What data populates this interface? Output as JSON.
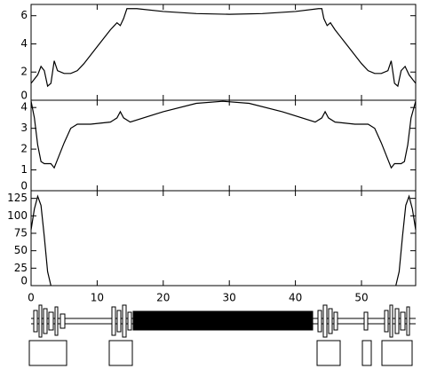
{
  "chart_data": [
    {
      "type": "line",
      "xlim": [
        0,
        58.2
      ],
      "ylim": [
        0,
        6.8
      ],
      "yticks": [
        0,
        2,
        4,
        6
      ],
      "x": [
        0,
        1,
        1.5,
        2,
        2.5,
        3,
        3.5,
        4,
        5,
        6,
        7,
        8,
        10,
        12,
        13,
        13.5,
        14,
        14.5,
        16,
        20,
        25,
        30,
        35,
        40,
        43.5,
        44,
        44.3,
        44.8,
        45.3,
        46,
        48,
        50,
        51,
        52,
        53,
        54,
        54.5,
        55,
        55.5,
        56,
        56.6,
        57.2,
        58.2
      ],
      "values": [
        1.2,
        1.8,
        2.4,
        2.1,
        1.0,
        1.2,
        2.8,
        2.1,
        1.9,
        1.9,
        2.1,
        2.6,
        3.8,
        5.0,
        5.5,
        5.3,
        5.8,
        6.5,
        6.5,
        6.3,
        6.15,
        6.1,
        6.15,
        6.3,
        6.5,
        6.5,
        5.8,
        5.3,
        5.5,
        5.0,
        3.8,
        2.6,
        2.1,
        1.9,
        1.9,
        2.1,
        2.8,
        1.2,
        1.0,
        2.1,
        2.4,
        1.8,
        1.2
      ]
    },
    {
      "type": "line",
      "xlim": [
        0,
        58.2
      ],
      "ylim": [
        0,
        4.35
      ],
      "yticks": [
        0,
        1,
        2,
        3,
        4
      ],
      "x": [
        0,
        0.5,
        1,
        1.5,
        2,
        3,
        3.5,
        4,
        5,
        6,
        7,
        9,
        12,
        13,
        13.5,
        14,
        15,
        20,
        25,
        29,
        33,
        38,
        43,
        44,
        44.5,
        45,
        46,
        49,
        51,
        52,
        53,
        54,
        54.5,
        55,
        56,
        56.5,
        57,
        57.5,
        58.2
      ],
      "values": [
        4.3,
        3.5,
        2.2,
        1.4,
        1.3,
        1.3,
        1.1,
        1.5,
        2.3,
        3.0,
        3.2,
        3.2,
        3.3,
        3.5,
        3.8,
        3.5,
        3.3,
        3.8,
        4.2,
        4.3,
        4.2,
        3.8,
        3.3,
        3.5,
        3.8,
        3.5,
        3.3,
        3.2,
        3.2,
        3.0,
        2.3,
        1.5,
        1.1,
        1.3,
        1.3,
        1.4,
        2.2,
        3.5,
        4.3
      ]
    },
    {
      "type": "line",
      "xlim": [
        0,
        58.2
      ],
      "ylim": [
        0,
        136
      ],
      "yticks": [
        0,
        25,
        50,
        75,
        100,
        125
      ],
      "xticks": [
        0,
        10,
        20,
        30,
        40,
        50
      ],
      "x": [
        0,
        0.5,
        1,
        1.5,
        2,
        2.5,
        3,
        30,
        55.2,
        55.7,
        56.2,
        56.7,
        57.2,
        57.7,
        58.2
      ],
      "values": [
        80,
        110,
        128,
        115,
        70,
        20,
        0,
        null,
        0,
        20,
        70,
        115,
        128,
        110,
        80
      ]
    }
  ]
}
